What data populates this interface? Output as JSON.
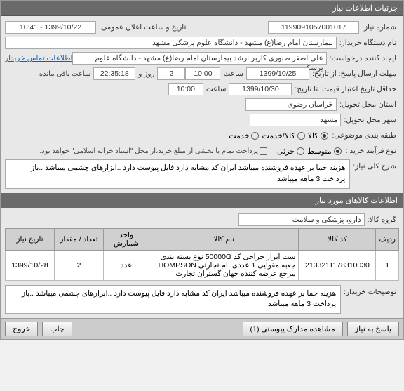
{
  "colors": {
    "header_bg": "#6a6a6a",
    "header_fg": "#ffffff",
    "body_bg": "#e8e8e8",
    "field_bg": "#ffffff",
    "border": "#aaaaaa",
    "link": "#0066cc",
    "th_bg": "#d0d0d0",
    "footer_bg": "#cccccc"
  },
  "sections": {
    "need_info_title": "جزئیات اطلاعات نیاز"
  },
  "need": {
    "label_number": "شماره نیاز:",
    "number": "1199091057001017",
    "label_announce": "تاریخ و ساعت اعلان عمومی:",
    "announce_datetime": "1399/10/22 - 10:41",
    "label_buyer_org": "نام دستگاه خریدار:",
    "buyer_org": "بیمارستان امام رضا(ع) مشهد - دانشگاه علوم پزشکی مشهد",
    "label_creator": "ایجاد کننده درخواست:",
    "creator": "علی اصغر صبوری کاربر ارشد بیمارستان امام رضا(ع) مشهد - دانشگاه علوم پزشکی",
    "buyer_contact_link": "اطلاعات تماس خریدار",
    "label_deadline": "مهلت ارسال پاسخ: از تاریخ:",
    "deadline_from_date": "1399/10/25",
    "label_hour": "ساعت",
    "deadline_from_time": "10:00",
    "deadline_to": "2",
    "label_day_and": "روز و",
    "deadline_countdown": "22:35:18",
    "label_remaining": "ساعت باقی مانده",
    "label_min_validity": "حداقل تاریخ اعتبار قیمت: تا تاریخ:",
    "validity_date": "1399/10/30",
    "validity_time": "10:00",
    "label_province": "استان محل تحویل:",
    "province": "خراسان رضوی",
    "label_city": "شهر محل تحویل:",
    "city": "مشهد",
    "label_budget": "طبقه بندی موضوعی:",
    "radio_goods": "کالا",
    "radio_service": "کالا/خدمت",
    "radio_service2": "خدمت",
    "label_process": "نوع فرآیند خرید :",
    "radio_small": "متوسط",
    "radio_large": "جزئی",
    "payment_note": "پرداخت تمام یا بخشی از مبلغ خرید،از محل \"اسناد خزانه اسلامی\" خواهد بود.",
    "label_summary": "شرح کلی نیاز:",
    "summary": "هزینه حما بر عهده فروشنده میباشد ایران کد مشابه دارد فایل پیوست دارد ..ابزارهای چشمی میباشد ..باز پرداخت 3 ماهه میباشد"
  },
  "goods": {
    "section_title": "اطلاعات کالاهای مورد نیاز",
    "label_group": "گروه کالا:",
    "group": "دارو، پزشکی و سلامت",
    "columns": [
      "ردیف",
      "کد کالا",
      "نام کالا",
      "واحد شمارش",
      "تعداد / مقدار",
      "تاریخ نیاز"
    ],
    "rows": [
      {
        "idx": "1",
        "code": "2133211178310030",
        "name": "ست ابزار جراحی کد 50000G نوع بسته بندی جعبه مقوایی 1 عددی نام تجارتی THOMPSON مرجع عرضه کننده جهان گستران تجارت",
        "unit": "عدد",
        "qty": "2",
        "date": "1399/10/28"
      }
    ]
  },
  "buyer_notes": {
    "label": "توضیحات خریدار:",
    "text": "هزینه حما بر عهده فروشنده میباشد ایران کد مشابه دارد فایل پیوست دارد ..ابزارهای چشمی میباشد ..باز پرداخت 3 ماهه میباشد"
  },
  "footer": {
    "reply": "پاسخ به نیاز",
    "attachments": "مشاهده مدارک پیوستی (1)",
    "print": "چاپ",
    "close": "خروج"
  }
}
